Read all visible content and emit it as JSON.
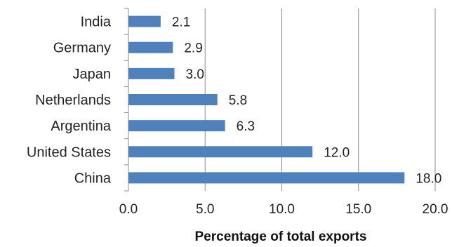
{
  "chart_data": {
    "type": "bar",
    "orientation": "horizontal",
    "title": "",
    "xlabel": "Percentage of total exports",
    "ylabel": "",
    "categories": [
      "India",
      "Germany",
      "Japan",
      "Netherlands",
      "Argentina",
      "United States",
      "China"
    ],
    "values": [
      2.1,
      2.9,
      3.0,
      5.8,
      6.3,
      12.0,
      18.0
    ],
    "data_labels": [
      "2.1",
      "2.9",
      "3.0",
      "5.8",
      "6.3",
      "12.0",
      "18.0"
    ],
    "xlim": [
      0,
      20
    ],
    "xticks": [
      "0.0",
      "5.0",
      "10.0",
      "15.0",
      "20.0"
    ],
    "grid": "vertical",
    "legend": "none",
    "bar_color": "#4F81BD",
    "grid_color": "#8C8C8C"
  }
}
